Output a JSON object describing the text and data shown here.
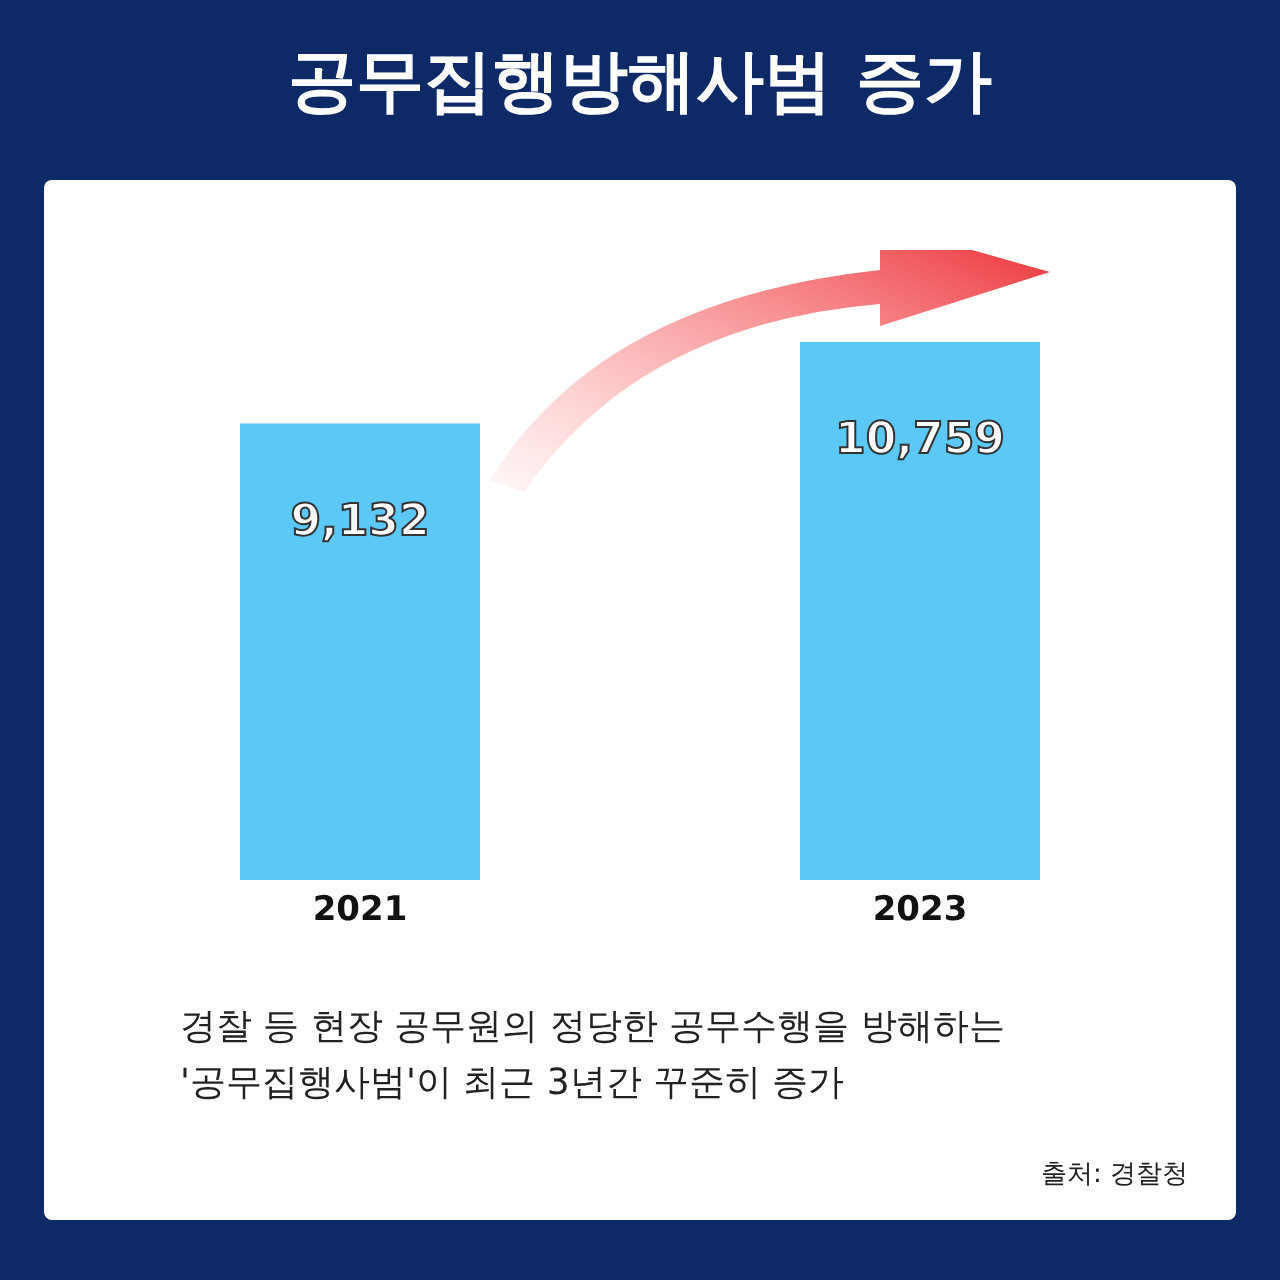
{
  "chart_data": {
    "type": "bar",
    "title": "공무집행방해사범 증가",
    "categories": [
      "2021",
      "2023"
    ],
    "values": [
      9132,
      10759
    ],
    "color": "#5bc8f5",
    "value_labels": [
      "9,132",
      "10,759"
    ],
    "annotations": [
      "경찰 등 현장 공무원의 정당한 공무수행을 방해하는 '공무집행사범'이 최근 3년간 꾸준히 증가",
      "출처: 경찰청"
    ]
  }
}
